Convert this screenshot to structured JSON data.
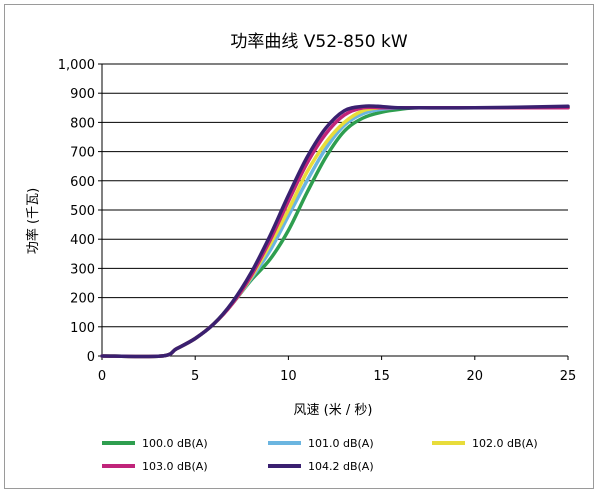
{
  "chart_data": {
    "type": "line",
    "title": "功率曲线 V52-850 kW",
    "xlabel": "风速 (米 / 秒)",
    "ylabel": "功率 (千瓦)",
    "xlim": [
      0,
      25
    ],
    "ylim": [
      0,
      1000
    ],
    "x_ticks": [
      0,
      5,
      10,
      15,
      20,
      25
    ],
    "y_ticks": [
      0,
      100,
      200,
      300,
      400,
      500,
      600,
      700,
      800,
      900,
      1000
    ],
    "y_tick_labels": [
      "0",
      "100",
      "200",
      "300",
      "400",
      "500",
      "600",
      "700",
      "800",
      "900",
      "1,000"
    ],
    "grid": "horizontal",
    "legend_position": "bottom",
    "series": [
      {
        "name": "100.0 dB(A)",
        "color": "#2e9e4f",
        "x": [
          0,
          3.2,
          4,
          5,
          6,
          7,
          8,
          9,
          10,
          11,
          12,
          13,
          14,
          15,
          16,
          17,
          20,
          25
        ],
        "y": [
          0,
          0,
          25,
          60,
          110,
          180,
          260,
          330,
          430,
          560,
          680,
          770,
          815,
          835,
          845,
          850,
          850,
          850
        ]
      },
      {
        "name": "101.0 dB(A)",
        "color": "#6bb5e0",
        "x": [
          0,
          3.2,
          4,
          5,
          6,
          7,
          8,
          9,
          10,
          11,
          12,
          13,
          14,
          15,
          16,
          17,
          20,
          25
        ],
        "y": [
          0,
          0,
          25,
          60,
          110,
          180,
          265,
          360,
          480,
          600,
          710,
          790,
          830,
          845,
          850,
          850,
          850,
          850
        ]
      },
      {
        "name": "102.0 dB(A)",
        "color": "#e8dc3a",
        "x": [
          0,
          3.2,
          4,
          5,
          6,
          7,
          8,
          9,
          10,
          11,
          12,
          13,
          14,
          15,
          16,
          17,
          20,
          25
        ],
        "y": [
          0,
          0,
          25,
          60,
          110,
          180,
          270,
          380,
          500,
          630,
          730,
          800,
          840,
          850,
          850,
          850,
          850,
          850
        ]
      },
      {
        "name": "103.0 dB(A)",
        "color": "#c0247a",
        "x": [
          0,
          3.2,
          4,
          5,
          6,
          7,
          8,
          9,
          10,
          11,
          12,
          13,
          14,
          15,
          16,
          17,
          20,
          25
        ],
        "y": [
          0,
          0,
          25,
          60,
          110,
          180,
          275,
          395,
          530,
          660,
          760,
          825,
          850,
          850,
          850,
          850,
          850,
          850
        ]
      },
      {
        "name": "104.2 dB(A)",
        "color": "#3a2070",
        "x": [
          0,
          3.2,
          4,
          5,
          6,
          7,
          8,
          9,
          10,
          11,
          12,
          13,
          14,
          14.8,
          16,
          17,
          20,
          25
        ],
        "y": [
          0,
          0,
          25,
          60,
          110,
          185,
          285,
          410,
          550,
          680,
          780,
          840,
          855,
          855,
          850,
          850,
          850,
          855
        ]
      }
    ]
  }
}
